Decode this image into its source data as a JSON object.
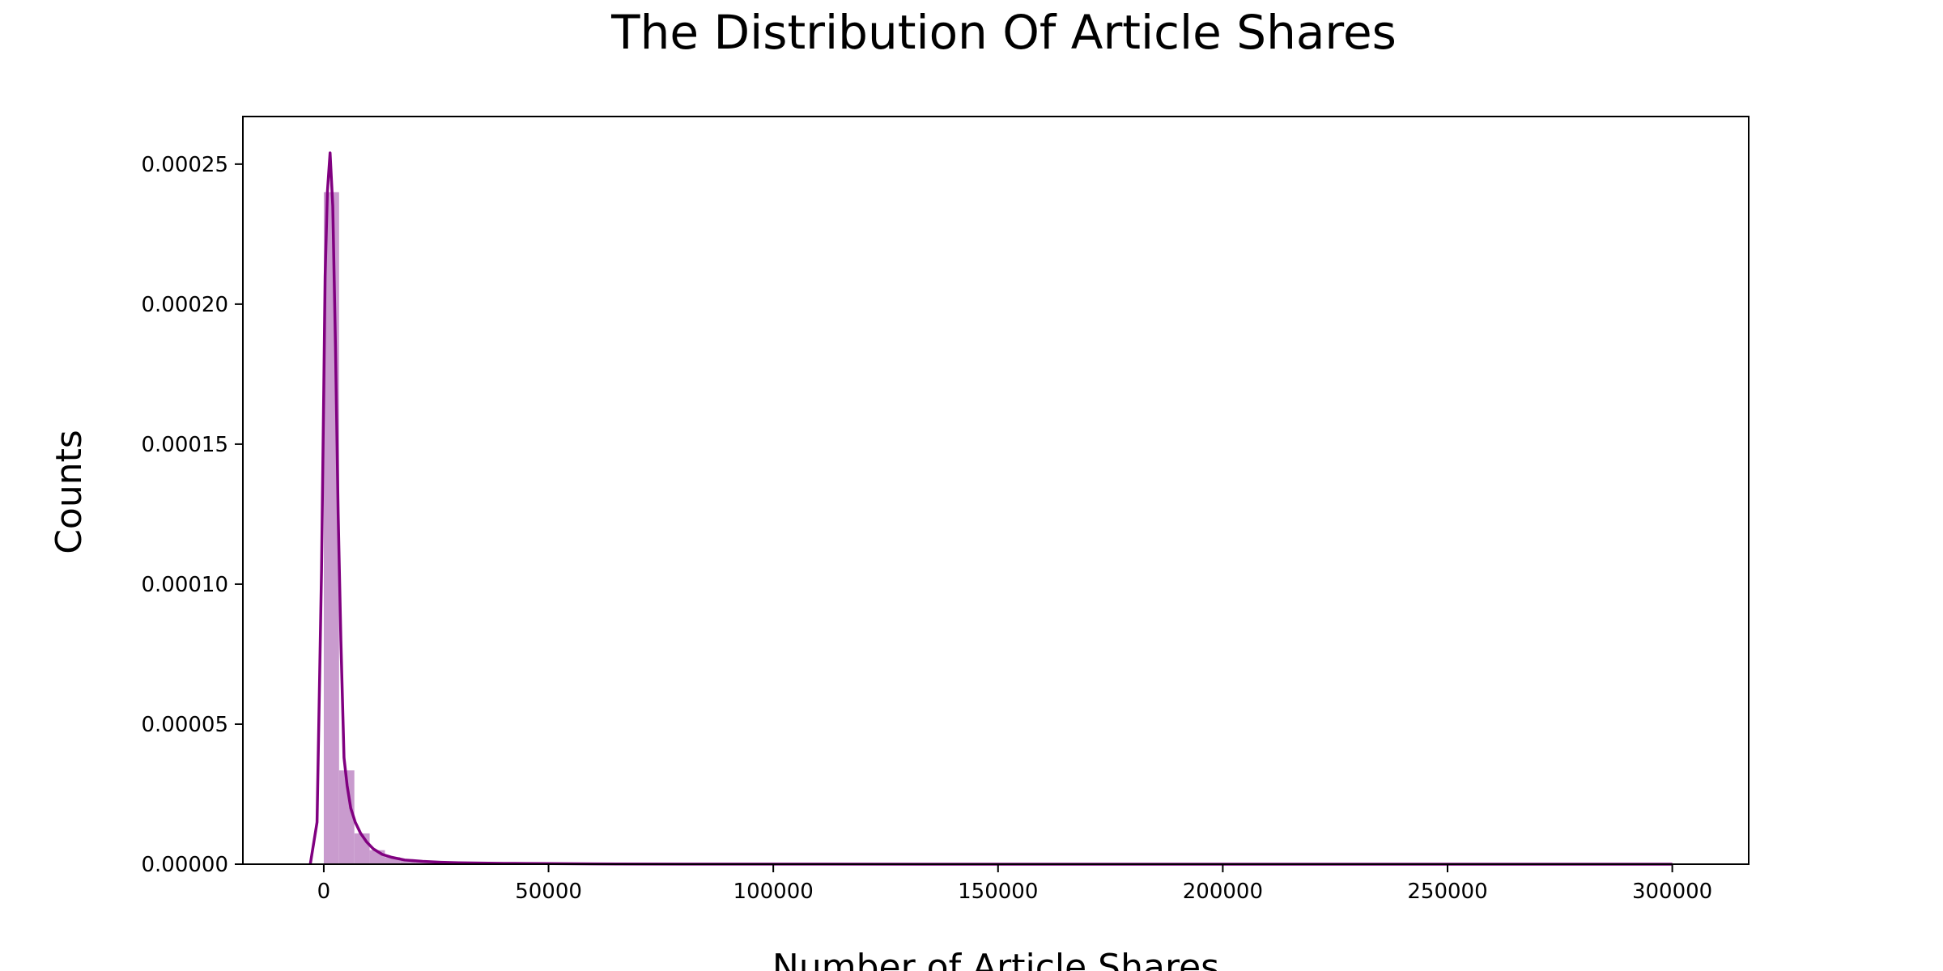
{
  "chart_data": {
    "type": "bar",
    "title": "The Distribution Of Article Shares",
    "xlabel": "Number of Article Shares",
    "ylabel": "Counts",
    "xlim": [
      -18000,
      317000
    ],
    "ylim": [
      0,
      0.000267
    ],
    "x_ticks": [
      0,
      50000,
      100000,
      150000,
      200000,
      250000,
      300000
    ],
    "x_tick_labels": [
      "0",
      "50000",
      "100000",
      "150000",
      "200000",
      "250000",
      "300000"
    ],
    "y_ticks": [
      0,
      5e-05,
      0.0001,
      0.00015,
      0.0002,
      0.00025
    ],
    "y_tick_labels": [
      "0.00000",
      "0.00005",
      "0.00010",
      "0.00015",
      "0.00020",
      "0.00025"
    ],
    "grid": false,
    "colors": {
      "bars": "#c99bce",
      "curve": "#800080",
      "axes": "#000000"
    },
    "series": [
      {
        "type": "histogram",
        "bin_edges": [
          0,
          3400,
          6800,
          10200,
          13600,
          17000,
          20400,
          23800,
          27200,
          30600,
          34000,
          37400,
          40800,
          44200,
          47600,
          51000,
          54400
        ],
        "values": [
          0.00024,
          3.35e-05,
          1.1e-05,
          5e-06,
          2.5e-06,
          1.5e-06,
          1e-06,
          7e-07,
          5e-07,
          4e-07,
          3e-07,
          2.5e-07,
          2e-07,
          1.5e-07,
          1.2e-07,
          1e-07
        ]
      },
      {
        "type": "line",
        "x": [
          -3000,
          -1500,
          -500,
          0,
          300,
          800,
          1400,
          2000,
          2600,
          3200,
          3800,
          4500,
          5200,
          6000,
          7000,
          8200,
          9500,
          11000,
          13000,
          15000,
          18000,
          22000,
          26000,
          30000,
          35000,
          40000,
          45000,
          50000,
          60000,
          80000,
          100000,
          150000,
          200000,
          250000,
          300000
        ],
        "y": [
          0,
          1.5e-05,
          0.000105,
          0.00017,
          0.00021,
          0.00024,
          0.000254,
          0.000235,
          0.000185,
          0.000125,
          8e-05,
          3.8e-05,
          2.8e-05,
          2e-05,
          1.5e-05,
          1.1e-05,
          8e-06,
          5.5e-06,
          3.5e-06,
          2.5e-06,
          1.5e-06,
          1e-06,
          7e-07,
          5e-07,
          4e-07,
          3e-07,
          2.5e-07,
          2e-07,
          1e-07,
          5e-08,
          3e-08,
          1e-08,
          5e-09,
          3e-09,
          2e-09
        ]
      }
    ]
  }
}
